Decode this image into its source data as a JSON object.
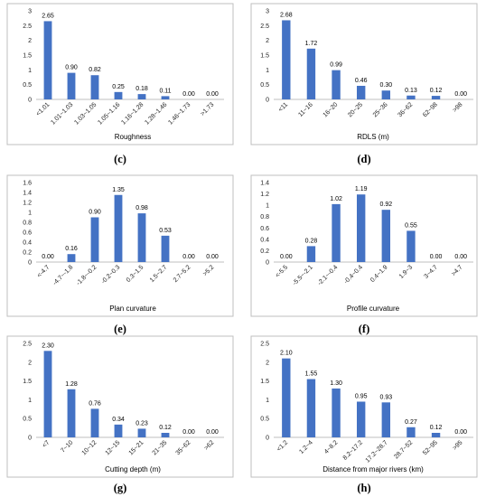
{
  "chart_data": [
    {
      "type": "bar",
      "panel_label": "(c)",
      "xlabel": "Roughness",
      "ylabel": "",
      "ylim": [
        0,
        3
      ],
      "yticks": [
        "0",
        "0.5",
        "1",
        "1.5",
        "2",
        "2.5",
        "3"
      ],
      "categories": [
        "<1.01",
        "1.01~1.03",
        "1.03~1.05",
        "1.05~1.16",
        "1.16~1.28",
        "1.28~1.46",
        "1.46~1.73",
        ">1.73"
      ],
      "values": [
        2.65,
        0.9,
        0.82,
        0.25,
        0.18,
        0.11,
        0.0,
        0.0
      ],
      "labels": [
        "2.65",
        "0.90",
        "0.82",
        "0.25",
        "0.18",
        "0.11",
        "0.00",
        "0.00"
      ],
      "bar_color": "#4472C4"
    },
    {
      "type": "bar",
      "panel_label": "(d)",
      "xlabel": "RDLS (m)",
      "ylabel": "",
      "ylim": [
        0,
        3
      ],
      "yticks": [
        "0",
        "0.5",
        "1",
        "1.5",
        "2",
        "2.5",
        "3"
      ],
      "categories": [
        "<11",
        "11~16",
        "16~20",
        "20~25",
        "25~36",
        "36~62",
        "62~98",
        ">98"
      ],
      "values": [
        2.68,
        1.72,
        0.99,
        0.46,
        0.3,
        0.13,
        0.12,
        0.0
      ],
      "labels": [
        "2.68",
        "1.72",
        "0.99",
        "0.46",
        "0.30",
        "0.13",
        "0.12",
        "0.00"
      ],
      "bar_color": "#4472C4"
    },
    {
      "type": "bar",
      "panel_label": "(e)",
      "xlabel": "Plan curvature",
      "ylabel": "",
      "ylim": [
        0,
        1.6
      ],
      "yticks": [
        "0",
        "0.2",
        "0.4",
        "0.6",
        "0.8",
        "1",
        "1.2",
        "1.4",
        "1.6"
      ],
      "categories": [
        "<-4.7",
        "-4.7~-1.8",
        "-1.8~-0.2",
        "-0.2~0.3",
        "0.3~1.5",
        "1.5~2.7",
        "2.7~5.2",
        ">5.2"
      ],
      "values": [
        0.0,
        0.16,
        0.9,
        1.35,
        0.98,
        0.53,
        0.0,
        0.0
      ],
      "labels": [
        "0.00",
        "0.16",
        "0.90",
        "1.35",
        "0.98",
        "0.53",
        "0.00",
        "0.00"
      ],
      "bar_color": "#4472C4"
    },
    {
      "type": "bar",
      "panel_label": "(f)",
      "xlabel": "Profile curvature",
      "ylabel": "",
      "ylim": [
        0,
        1.4
      ],
      "yticks": [
        "0",
        "0.2",
        "0.4",
        "0.6",
        "0.8",
        "1",
        "1.2",
        "1.4"
      ],
      "categories": [
        "<-5.5",
        "-5.5~-2.1",
        "-2.1~-0.4",
        "-0.4~0.4",
        "0.4~1.9",
        "1.9~3",
        "3~4.7",
        ">4.7"
      ],
      "values": [
        0.0,
        0.28,
        1.02,
        1.19,
        0.92,
        0.55,
        0.0,
        0.0
      ],
      "labels": [
        "0.00",
        "0.28",
        "1.02",
        "1.19",
        "0.92",
        "0.55",
        "0.00",
        "0.00"
      ],
      "bar_color": "#4472C4"
    },
    {
      "type": "bar",
      "panel_label": "(g)",
      "xlabel": "Cutting depth (m)",
      "ylabel": "",
      "ylim": [
        0,
        2.5
      ],
      "yticks": [
        "0",
        "0.5",
        "1",
        "1.5",
        "2",
        "2.5"
      ],
      "categories": [
        "<7",
        "7~10",
        "10~12",
        "12~15",
        "15~21",
        "21~35",
        "35~62",
        ">62"
      ],
      "values": [
        2.3,
        1.28,
        0.76,
        0.34,
        0.23,
        0.12,
        0.0,
        0.0
      ],
      "labels": [
        "2.30",
        "1.28",
        "0.76",
        "0.34",
        "0.23",
        "0.12",
        "0.00",
        "0.00"
      ],
      "bar_color": "#4472C4"
    },
    {
      "type": "bar",
      "panel_label": "(h)",
      "xlabel": "Distance from major rivers (km)",
      "ylabel": "",
      "ylim": [
        0,
        2.5
      ],
      "yticks": [
        "0",
        "0.5",
        "1",
        "1.5",
        "2",
        "2.5"
      ],
      "categories": [
        "<1.2",
        "1.2~4",
        "4~8.2",
        "8.2~17.2",
        "17.2~28.7",
        "28.7~52",
        "52~95",
        ">95"
      ],
      "values": [
        2.1,
        1.55,
        1.3,
        0.95,
        0.93,
        0.27,
        0.12,
        0.0
      ],
      "labels": [
        "2.10",
        "1.55",
        "1.30",
        "0.95",
        "0.93",
        "0.27",
        "0.12",
        "0.00"
      ],
      "bar_color": "#4472C4"
    }
  ]
}
